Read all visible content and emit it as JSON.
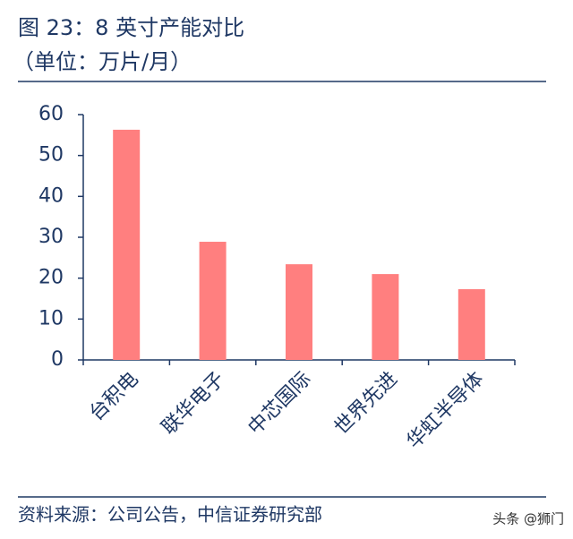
{
  "chart_data": {
    "type": "bar",
    "title": "图 23：8 英寸产能对比",
    "subtitle": "（单位：万片/月）",
    "categories": [
      "台积电",
      "联华电子",
      "中芯国际",
      "世界先进",
      "华虹半导体"
    ],
    "values": [
      56.3,
      28.9,
      23.4,
      21.0,
      17.3
    ],
    "color": "#ff7f7f",
    "ylim": [
      0,
      60
    ],
    "yticks": [
      0,
      10,
      20,
      30,
      40,
      50,
      60
    ],
    "grid": false,
    "source": "资料来源：公司公告，中信证券研究部",
    "watermark": "头条 @狮门"
  }
}
